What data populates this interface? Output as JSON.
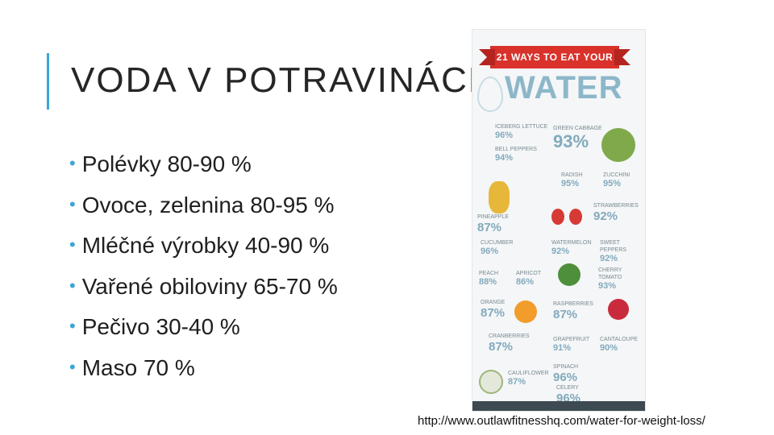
{
  "slide": {
    "title": "VODA V POTRAVINÁCH",
    "bullets": [
      "Polévky 80-90 %",
      "Ovoce, zelenina 80-95 %",
      "Mléčné výrobky 40-90 %",
      "Vařené obiloviny 65-70 %",
      "Pečivo 30-40 %",
      "Maso 70 %"
    ],
    "source_url": "http://www.outlawfitnesshq.com/water-for-weight-loss/",
    "accent_color": "#3aa6d8"
  },
  "infographic": {
    "ribbon": "21 WAYS TO EAT YOUR",
    "headline": "WATER",
    "items": [
      {
        "name": "ICEBERG LETTUCE",
        "pct": "96%"
      },
      {
        "name": "GREEN CABBAGE",
        "pct": "93%"
      },
      {
        "name": "BELL PEPPERS",
        "pct": "94%"
      },
      {
        "name": "RADISH",
        "pct": "95%"
      },
      {
        "name": "ZUCCHINI",
        "pct": "95%"
      },
      {
        "name": "PINEAPPLE",
        "pct": "87%"
      },
      {
        "name": "STRAWBERRIES",
        "pct": "92%"
      },
      {
        "name": "CUCUMBER",
        "pct": "96%"
      },
      {
        "name": "WATERMELON",
        "pct": "92%"
      },
      {
        "name": "SWEET PEPPERS",
        "pct": "92%"
      },
      {
        "name": "PEACH",
        "pct": "88%"
      },
      {
        "name": "APRICOT",
        "pct": "86%"
      },
      {
        "name": "CHERRY TOMATO",
        "pct": "93%"
      },
      {
        "name": "ORANGE",
        "pct": "87%"
      },
      {
        "name": "RASPBERRIES",
        "pct": "87%"
      },
      {
        "name": "CRANBERRIES",
        "pct": "87%"
      },
      {
        "name": "GRAPEFRUIT",
        "pct": "91%"
      },
      {
        "name": "CANTALOUPE",
        "pct": "90%"
      },
      {
        "name": "SPINACH",
        "pct": "96%"
      },
      {
        "name": "CAULIFLOWER",
        "pct": "87%"
      },
      {
        "name": "CELERY",
        "pct": "96%"
      }
    ]
  }
}
